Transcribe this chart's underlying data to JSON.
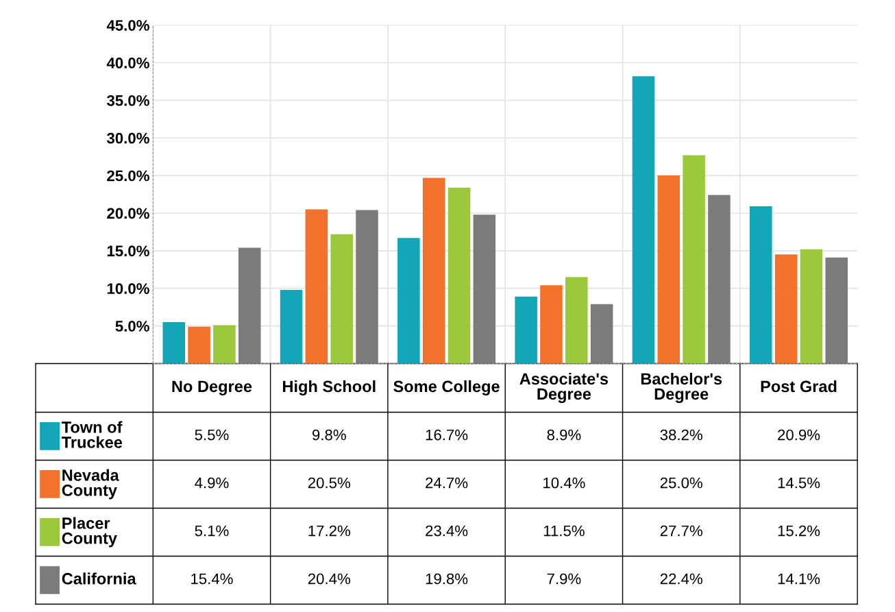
{
  "chart_data": {
    "type": "bar",
    "categories": [
      "No Degree",
      "High School",
      "Some College",
      "Associate's\nDegree",
      "Bachelor's\nDegree",
      "Post Grad"
    ],
    "series": [
      {
        "name": "Town of\nTruckee",
        "color": "#12a6b6",
        "values": [
          5.5,
          9.8,
          16.7,
          8.9,
          38.2,
          20.9
        ],
        "value_labels": [
          "5.5%",
          "9.8%",
          "16.7%",
          "8.9%",
          "38.2%",
          "20.9%"
        ]
      },
      {
        "name": "Nevada\nCounty",
        "color": "#f3722b",
        "values": [
          4.9,
          20.5,
          24.7,
          10.4,
          25.0,
          14.5
        ],
        "value_labels": [
          "4.9%",
          "20.5%",
          "24.7%",
          "10.4%",
          "25.0%",
          "14.5%"
        ]
      },
      {
        "name": "Placer\nCounty",
        "color": "#9bc83d",
        "values": [
          5.1,
          17.2,
          23.4,
          11.5,
          27.7,
          15.2
        ],
        "value_labels": [
          "5.1%",
          "17.2%",
          "23.4%",
          "11.5%",
          "27.7%",
          "15.2%"
        ]
      },
      {
        "name": "California",
        "color": "#7b7b7b",
        "values": [
          15.4,
          20.4,
          19.8,
          7.9,
          22.4,
          14.1
        ],
        "value_labels": [
          "15.4%",
          "20.4%",
          "19.8%",
          "7.9%",
          "22.4%",
          "14.1%"
        ]
      }
    ],
    "ylim": [
      0,
      45
    ],
    "yticks": [
      {
        "value": 5,
        "label": "5.0%"
      },
      {
        "value": 10,
        "label": "10.0%"
      },
      {
        "value": 15,
        "label": "15.0%"
      },
      {
        "value": 20,
        "label": "20.0%"
      },
      {
        "value": 25,
        "label": "25.0%"
      },
      {
        "value": 30,
        "label": "30.0%"
      },
      {
        "value": 35,
        "label": "35.0%"
      },
      {
        "value": 40,
        "label": "40.0%"
      },
      {
        "value": 45,
        "label": "45.0%"
      }
    ],
    "grid": true,
    "legend": "bottom left"
  }
}
